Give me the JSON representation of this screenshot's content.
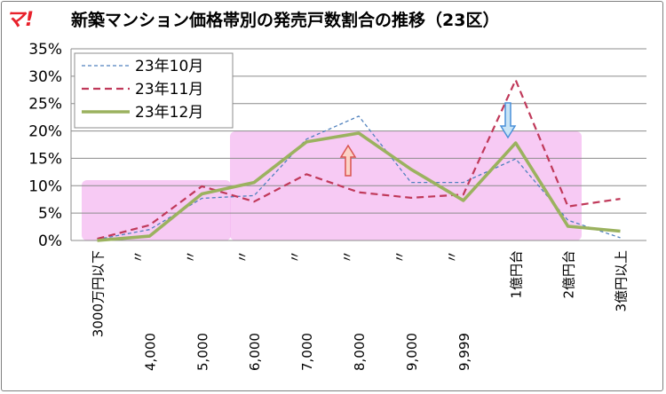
{
  "logo": "マ!",
  "chart_data": {
    "type": "line",
    "title": "新築マンション価格帯別の発売戸数割合の推移（23区）",
    "categories": [
      "3000万円以下",
      "〃\n4,000",
      "〃\n5,000",
      "〃\n6,000",
      "〃\n7,000",
      "〃\n8,000",
      "〃\n9,000",
      "〃\n9,999",
      "1億円台",
      "2億円台",
      "3億円以上"
    ],
    "yticks": [
      "0%",
      "5%",
      "10%",
      "15%",
      "20%",
      "25%",
      "30%",
      "35%"
    ],
    "ylim": [
      0,
      35
    ],
    "grid": true,
    "legend_position": "top-left",
    "series": [
      {
        "name": "23年10月",
        "values": [
          0.2,
          2.0,
          7.7,
          8.2,
          18.5,
          22.7,
          10.6,
          10.6,
          14.9,
          3.7,
          0.5
        ],
        "color": "#4f81bd",
        "style": "dotted"
      },
      {
        "name": "23年11月",
        "values": [
          0.3,
          2.8,
          9.9,
          7.1,
          12.1,
          8.8,
          7.8,
          8.4,
          29.3,
          6.2,
          7.6
        ],
        "color": "#c0395a",
        "style": "dashed"
      },
      {
        "name": "23年12月",
        "values": [
          0.0,
          0.8,
          8.5,
          10.6,
          18.0,
          19.6,
          13.0,
          7.3,
          17.8,
          2.6,
          1.7
        ],
        "color": "#9bb25f",
        "style": "solid"
      }
    ]
  }
}
